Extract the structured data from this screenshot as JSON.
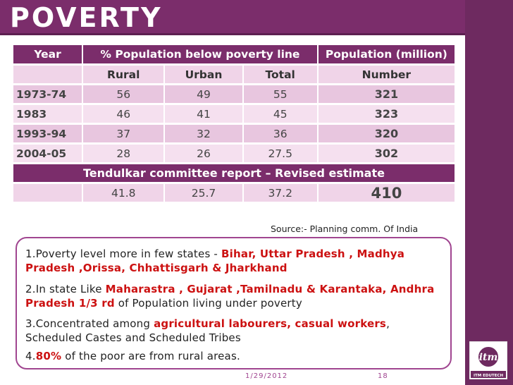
{
  "title": "POVERTY",
  "table": {
    "header": {
      "year": "Year",
      "pct": "% Population below poverty line",
      "pop": "Population (million)"
    },
    "subheader": {
      "rural": "Rural",
      "urban": "Urban",
      "total": "Total",
      "number": "Number"
    },
    "rows": [
      {
        "year": "1973-74",
        "rural": "56",
        "urban": "49",
        "total": "55",
        "number": "321"
      },
      {
        "year": "1983",
        "rural": "46",
        "urban": "41",
        "total": "45",
        "number": "323"
      },
      {
        "year": "1993-94",
        "rural": "37",
        "urban": "32",
        "total": "36",
        "number": "320"
      },
      {
        "year": "2004-05",
        "rural": "28",
        "urban": "26",
        "total": "27.5",
        "number": "302"
      }
    ],
    "tendulkar": "Tendulkar  committee report – Revised estimate",
    "revised": {
      "rural": "41.8",
      "urban": "25.7",
      "total": "37.2",
      "number": "410"
    }
  },
  "source": "Source:- Planning comm. Of India",
  "points": {
    "p1_a": "1.Poverty level more in few states - ",
    "p1_b": "Bihar, Uttar Pradesh , Madhya",
    "p1_c": "Pradesh ,Orissa, Chhattisgarh & Jharkhand",
    "p2_a": "2.In state Like ",
    "p2_b": "Maharastra , Gujarat ,Tamilnadu & Karantaka, Andhra",
    "p2_c": "Pradesh 1/3 rd",
    "p2_d": " of Population living under poverty",
    "p3_a": "3.Concentrated among ",
    "p3_b": "agricultural labourers, casual workers",
    "p3_c": ",",
    "p3_d": "Scheduled Castes and Scheduled Tribes",
    "p4_a": "4.",
    "p4_b": "80%",
    "p4_c": " of the poor are from rural areas."
  },
  "footer": {
    "date": "1/29/2012",
    "page": "18"
  },
  "logo": {
    "name": "itm-logo",
    "text": "ITM EDUTECH"
  },
  "colors": {
    "accent": "#7b2d6b",
    "highlight": "#cc1111"
  }
}
